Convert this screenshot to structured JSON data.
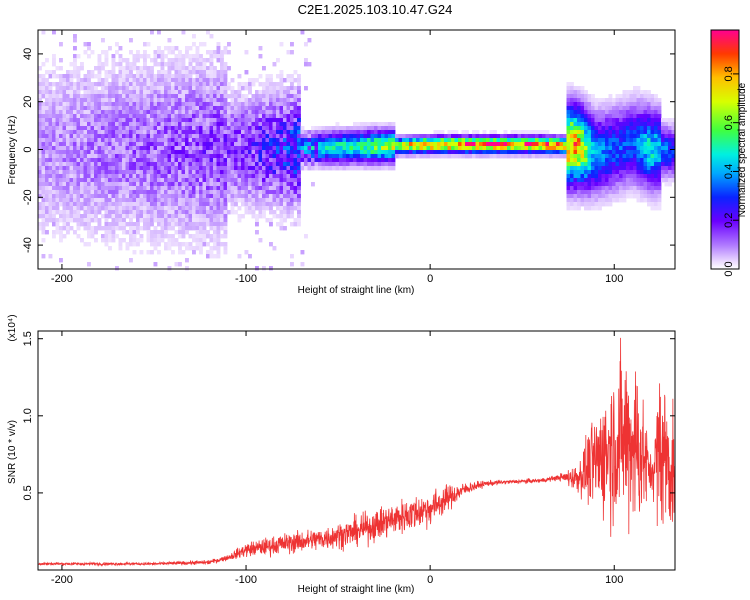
{
  "title": "C2E1.2025.103.10.47.G24",
  "chart_data": [
    {
      "type": "heatmap",
      "xlabel": "Height of straight line (km)",
      "ylabel": "Frequency (Hz)",
      "xlim": [
        -213,
        133
      ],
      "ylim": [
        -50,
        50
      ],
      "xticks": [
        -200,
        -100,
        0,
        100
      ],
      "yticks": [
        -40,
        -20,
        0,
        20,
        40
      ],
      "colorbar": {
        "label": "Normalized spectral amplitude",
        "ticks": [
          "0.0",
          "0.2",
          "0.4",
          "0.6",
          "0.8"
        ],
        "tick_values": [
          0.0,
          0.2,
          0.4,
          0.6,
          0.8
        ],
        "range": [
          0,
          0.98
        ]
      },
      "ridge": {
        "x": [
          -213,
          -100,
          -80,
          -60,
          -40,
          -20,
          0,
          20,
          40,
          60,
          80,
          90,
          100,
          110,
          120,
          133
        ],
        "frequency": [
          0,
          0,
          0,
          0.5,
          1,
          1.5,
          2,
          2,
          2,
          2,
          1.5,
          -2,
          0,
          3,
          0,
          -1
        ],
        "amplitude": [
          0.1,
          0.2,
          0.3,
          0.45,
          0.55,
          0.7,
          0.9,
          0.95,
          0.95,
          0.95,
          0.85,
          0.4,
          0.35,
          0.35,
          0.5,
          0.3
        ]
      }
    },
    {
      "type": "line",
      "xlabel": "Height of straight line (km)",
      "ylabel": "SNR (10 * v/v)",
      "y_multiplier": "(x10⁴)",
      "xlim": [
        -213,
        133
      ],
      "ylim": [
        0,
        1.55
      ],
      "xticks": [
        -200,
        -100,
        0,
        100
      ],
      "yticks": [
        "0.5",
        "1.0",
        "1.5"
      ],
      "ytick_values": [
        0.5,
        1.0,
        1.5
      ],
      "color": "#ee3333",
      "series": [
        {
          "x": [
            -213,
            -150,
            -120,
            -110,
            -100,
            -80,
            -60,
            -40,
            -20,
            0,
            10,
            20,
            30,
            40,
            60,
            70,
            80,
            90,
            100,
            105,
            110,
            115,
            120,
            125,
            133
          ],
          "y": [
            0.04,
            0.04,
            0.05,
            0.08,
            0.13,
            0.17,
            0.2,
            0.25,
            0.33,
            0.4,
            0.47,
            0.53,
            0.56,
            0.57,
            0.58,
            0.6,
            0.6,
            0.7,
            0.82,
            0.85,
            0.85,
            0.75,
            0.62,
            0.8,
            0.62
          ],
          "noise": [
            0.01,
            0.01,
            0.015,
            0.02,
            0.05,
            0.07,
            0.08,
            0.1,
            0.12,
            0.12,
            0.09,
            0.04,
            0.02,
            0.015,
            0.015,
            0.02,
            0.1,
            0.35,
            0.55,
            0.6,
            0.65,
            0.5,
            0.1,
            0.6,
            0.4
          ]
        }
      ]
    }
  ]
}
